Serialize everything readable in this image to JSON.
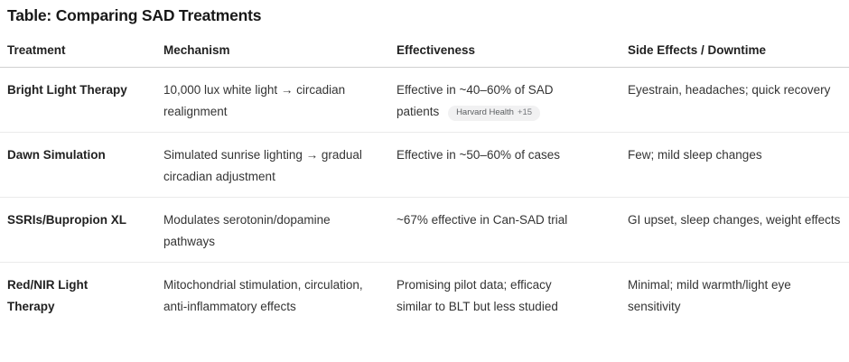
{
  "page": {
    "title": "Table: Comparing SAD Treatments"
  },
  "table": {
    "headers": [
      "Treatment",
      "Mechanism",
      "Effectiveness",
      "Side Effects / Downtime"
    ],
    "rows": [
      {
        "treatment": "Bright Light Therapy",
        "mechanism": "10,000 lux white light → circadian realignment",
        "effectiveness": "Effective in ~40–60% of SAD patients",
        "citation_label": "Harvard Health",
        "citation_count": "+15",
        "side_effects": "Eyestrain, headaches; quick recovery"
      },
      {
        "treatment": "Dawn Simulation",
        "mechanism": "Simulated sunrise lighting → gradual circadian adjustment",
        "effectiveness": "Effective in ~50–60% of cases",
        "side_effects": "Few; mild sleep changes"
      },
      {
        "treatment": "SSRIs/Bupropion XL",
        "mechanism": "Modulates serotonin/dopamine pathways",
        "effectiveness": "~67% effective in Can-SAD trial",
        "side_effects": "GI upset, sleep changes, weight effects"
      },
      {
        "treatment": "Red/NIR Light Therapy",
        "mechanism": "Mitochondrial stimulation, circulation, anti-inflammatory effects",
        "effectiveness": "Promising pilot data; efficacy similar to BLT but less studied",
        "side_effects": "Minimal; mild warmth/light eye sensitivity"
      }
    ]
  },
  "colors": {
    "background": "#ffffff",
    "text_title": "#181818",
    "text_body": "#343434",
    "header_rule": "#d0d0d0",
    "row_rule": "#eaeaea",
    "badge_bg": "#f1f1f2",
    "badge_text": "#5c5f62"
  }
}
